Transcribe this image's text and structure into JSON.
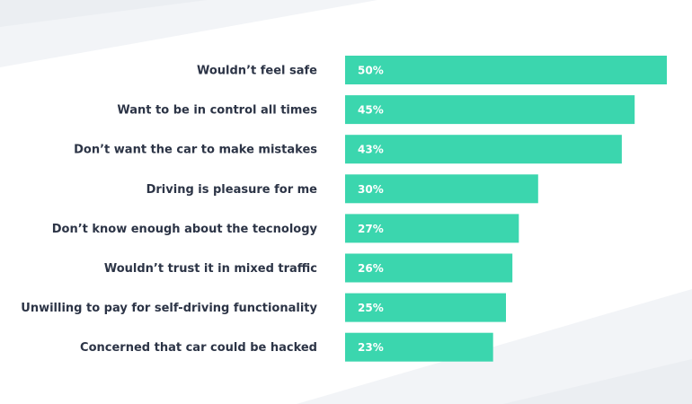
{
  "chart_data": {
    "type": "bar",
    "orientation": "horizontal",
    "title": "",
    "xlabel": "",
    "ylabel": "",
    "categories": [
      "Wouldn’t feel safe",
      "Want to be in control all times",
      "Don’t want the car to make mistakes",
      "Driving is pleasure for me",
      "Don’t know enough about the tecnology",
      "Wouldn’t trust it in mixed traffic",
      "Unwilling to pay for self-driving functionality",
      "Concerned that car could be hacked"
    ],
    "values": [
      50,
      45,
      43,
      30,
      27,
      26,
      25,
      23
    ],
    "value_labels": [
      "50%",
      "45%",
      "43%",
      "30%",
      "27%",
      "26%",
      "25%",
      "23%"
    ],
    "xlim": [
      0,
      50
    ],
    "grid": false,
    "bar_color": "#3bd6ae",
    "label_color": "#2c3446",
    "value_label_color": "#ffffff"
  }
}
